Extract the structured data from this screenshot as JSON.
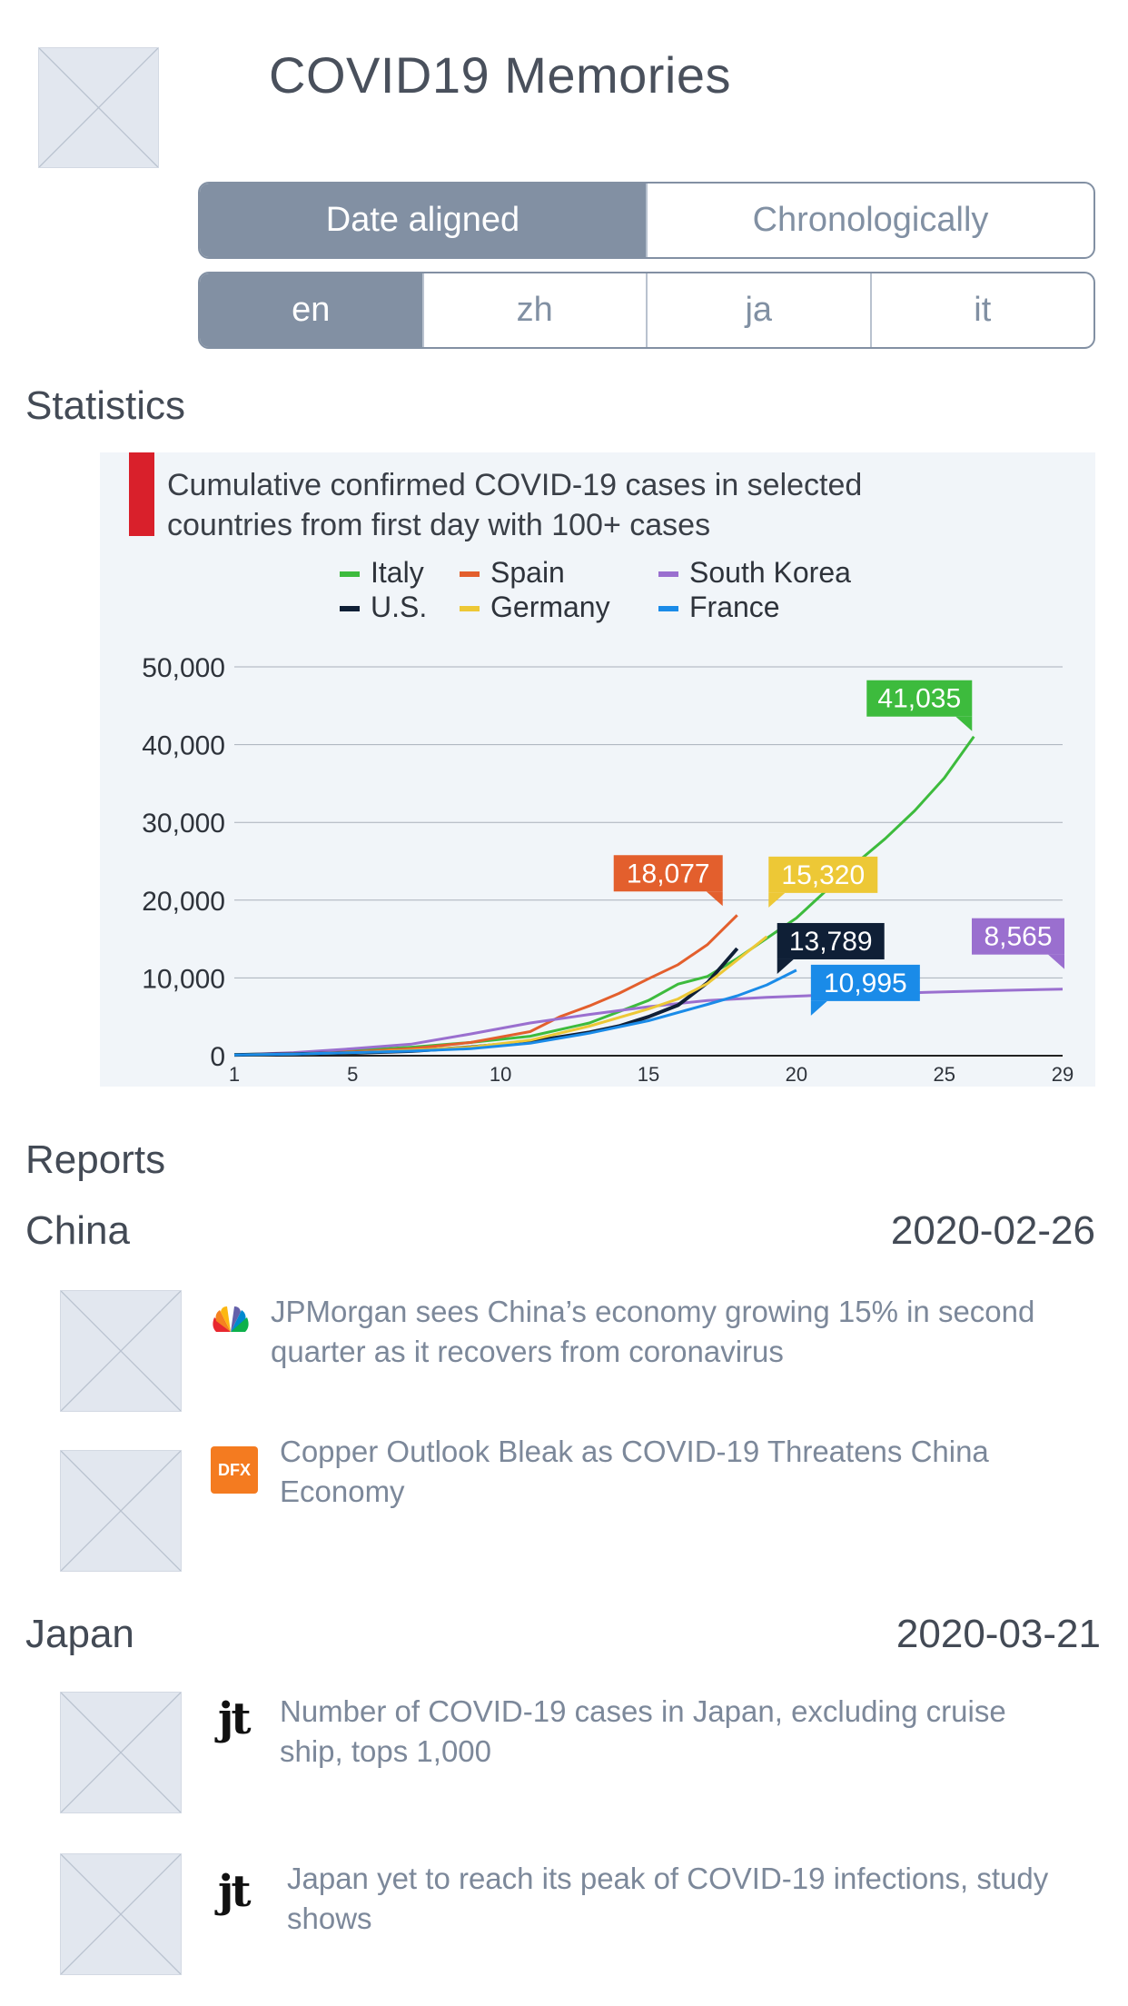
{
  "header": {
    "title": "COVID19 Memories"
  },
  "view_toggle": [
    {
      "label": "Date aligned",
      "active": true
    },
    {
      "label": "Chronologically",
      "active": false
    }
  ],
  "language_toggle": [
    {
      "label": "en",
      "active": true
    },
    {
      "label": "zh",
      "active": false
    },
    {
      "label": "ja",
      "active": false
    },
    {
      "label": "it",
      "active": false
    }
  ],
  "statistics": {
    "heading": "Statistics"
  },
  "chart_data": {
    "type": "line",
    "title": "Cumulative confirmed COVID-19 cases in selected countries from first day with 100+ cases",
    "title_lines": [
      "Cumulative confirmed COVID-19 cases in selected",
      "countries from first day with 100+ cases"
    ],
    "xlabel": "",
    "ylabel": "",
    "xlim": [
      1,
      29
    ],
    "ylim": [
      0,
      50000
    ],
    "x_ticks": [
      1,
      5,
      10,
      15,
      20,
      25,
      29
    ],
    "y_ticks": [
      {
        "value": 0,
        "label": "0"
      },
      {
        "value": 10000,
        "label": "10,000"
      },
      {
        "value": 20000,
        "label": "20,000"
      },
      {
        "value": 30000,
        "label": "30,000"
      },
      {
        "value": 40000,
        "label": "40,000"
      },
      {
        "value": 50000,
        "label": "50,000"
      }
    ],
    "grid": true,
    "legend_position": "top",
    "series": [
      {
        "name": "Italy",
        "color": "#3dbb3d",
        "x": [
          1,
          3,
          5,
          7,
          9,
          11,
          13,
          15,
          16,
          17,
          18,
          19,
          20,
          21,
          22,
          23,
          24,
          25,
          26
        ],
        "y": [
          150,
          300,
          650,
          1100,
          1700,
          2500,
          4200,
          7100,
          9200,
          10200,
          12500,
          15100,
          17700,
          21200,
          24700,
          27900,
          31500,
          35700,
          41035
        ],
        "label": "41,035",
        "label_color": "#3dbb3d"
      },
      {
        "name": "Spain",
        "color": "#e35f2d",
        "x": [
          1,
          3,
          5,
          7,
          9,
          11,
          12,
          13,
          14,
          15,
          16,
          17,
          18
        ],
        "y": [
          120,
          260,
          500,
          900,
          1700,
          3100,
          5000,
          6400,
          8000,
          9900,
          11700,
          14300,
          18077
        ],
        "label": "18,077",
        "label_color": "#e35f2d"
      },
      {
        "name": "South Korea",
        "color": "#9a6fcf",
        "x": [
          1,
          3,
          5,
          7,
          9,
          11,
          13,
          15,
          17,
          19,
          21,
          23,
          25,
          27,
          29
        ],
        "y": [
          100,
          400,
          900,
          1500,
          2800,
          4200,
          5300,
          6300,
          7100,
          7500,
          7800,
          8000,
          8200,
          8400,
          8565
        ],
        "label": "8,565",
        "label_color": "#9a6fcf"
      },
      {
        "name": "U.S.",
        "color": "#0f1f36",
        "x": [
          1,
          3,
          5,
          7,
          9,
          11,
          13,
          14,
          15,
          16,
          17,
          18
        ],
        "y": [
          100,
          200,
          350,
          600,
          1100,
          1800,
          3000,
          3800,
          5000,
          6500,
          9400,
          13789
        ],
        "label": "13,789",
        "label_color": "#0f1f36"
      },
      {
        "name": "Germany",
        "color": "#edc836",
        "x": [
          1,
          3,
          5,
          7,
          9,
          11,
          13,
          15,
          16,
          17,
          18,
          19
        ],
        "y": [
          110,
          200,
          400,
          700,
          1100,
          2000,
          3800,
          6000,
          7300,
          9300,
          12300,
          15320
        ],
        "label": "15,320",
        "label_color": "#edc836"
      },
      {
        "name": "France",
        "color": "#1a8be8",
        "x": [
          1,
          3,
          5,
          7,
          9,
          11,
          13,
          15,
          17,
          18,
          19,
          20
        ],
        "y": [
          110,
          200,
          400,
          600,
          900,
          1600,
          2900,
          4500,
          6600,
          7700,
          9100,
          10995
        ],
        "label": "10,995",
        "label_color": "#1a8be8"
      }
    ]
  },
  "reports": {
    "heading": "Reports",
    "groups": [
      {
        "country": "China",
        "date": "2020-02-26",
        "items": [
          {
            "source_icon": "nbc-peacock-icon",
            "headline": "JPMorgan sees China’s economy growing 15% in second quarter as it recovers from coronavirus"
          },
          {
            "source_icon": "dfx-logo-icon",
            "source_text": "DFX",
            "headline": "Copper Outlook Bleak as COVID-19 Threatens China Economy"
          }
        ]
      },
      {
        "country": "Japan",
        "date": "2020-03-21",
        "items": [
          {
            "source_icon": "jt-logo-icon",
            "source_text": "jt",
            "headline": "Number of COVID-19 cases in Japan, excluding cruise ship, tops 1,000"
          },
          {
            "source_icon": "jt-logo-icon",
            "source_text": "jt",
            "headline": "Japan yet to reach its peak of COVID-19 infections, study shows"
          }
        ]
      }
    ]
  }
}
